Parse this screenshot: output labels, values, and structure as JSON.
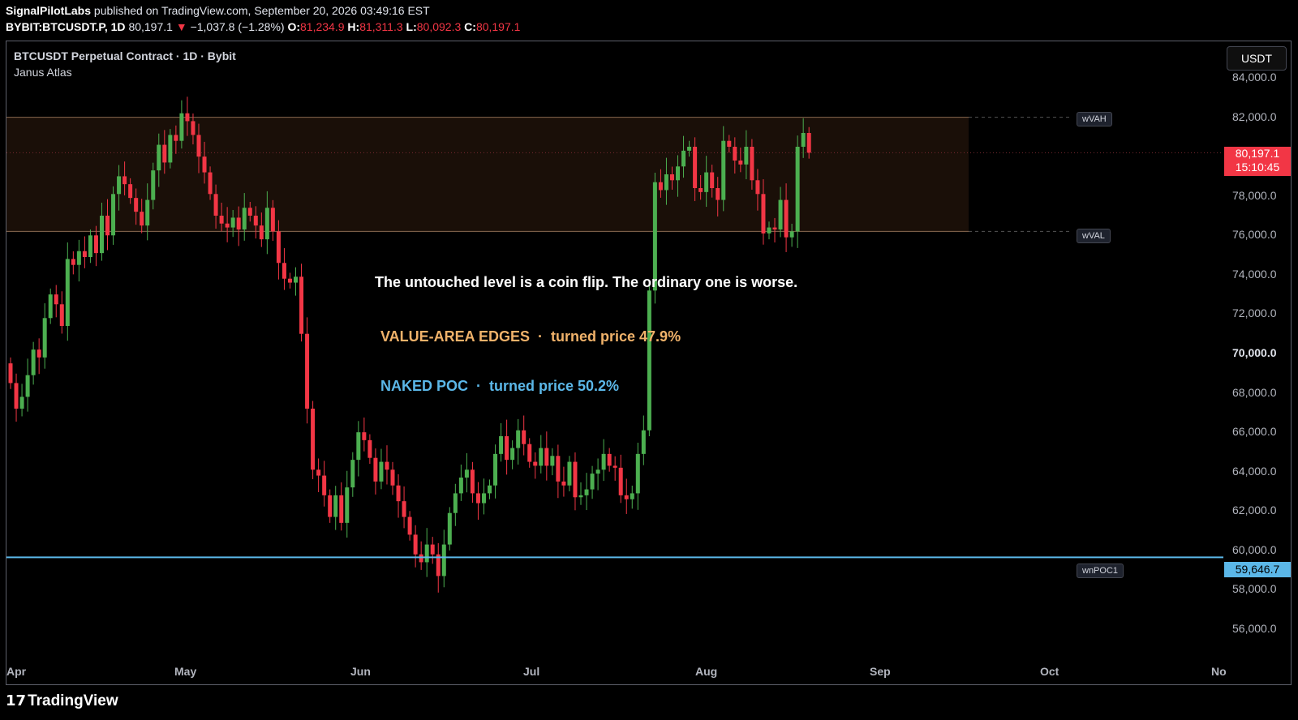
{
  "header": {
    "publisher": "SignalPilotLabs",
    "published_text": "published on TradingView.com, September 20, 2026 03:49:16 EST",
    "symbol": "BYBIT:BTCUSDT.P, 1D",
    "last": "80,197.1",
    "change_arrow": "▼",
    "change": "−1,037.8 (−1.28%)",
    "o_label": "O:",
    "o_value": "81,234.9",
    "h_label": "H:",
    "h_value": "81,311.3",
    "l_label": "L:",
    "l_value": "80,092.3",
    "c_label": "C:",
    "c_value": "80,197.1"
  },
  "chart_title": "BTCUSDT Perpetual Contract · 1D · Bybit",
  "indicator_name": "Janus Atlas",
  "currency_button": "USDT",
  "annotations": {
    "line1": "The untouched level is a coin flip. The ordinary one is worse.",
    "line2": "VALUE-AREA EDGES  ·  turned price 47.9%",
    "line3": "NAKED POC  ·  turned price 50.2%"
  },
  "levels": {
    "wvah_label": "wVAH",
    "wval_label": "wVAL",
    "wnpoc_label": "wnPOC1",
    "price_label": "80,197.1",
    "countdown": "15:10:45",
    "poc_price_label": "59,646.7"
  },
  "y_axis_labels": [
    "84,000.0",
    "82,000.0",
    "80,000.0",
    "78,000.0",
    "76,000.0",
    "74,000.0",
    "72,000.0",
    "70,000.0",
    "68,000.0",
    "66,000.0",
    "64,000.0",
    "62,000.0",
    "60,000.0",
    "58,000.0",
    "56,000.0"
  ],
  "x_axis_labels": [
    "Apr",
    "May",
    "Jun",
    "Jul",
    "Aug",
    "Sep",
    "Oct",
    "No"
  ],
  "logo_text": "TradingView",
  "colors": {
    "up": "#4caf50",
    "down": "#f23645",
    "value_area_fill": "#1a0f08",
    "value_area_line": "#8a6a50",
    "poc_line": "#5bb7e8",
    "annotation_edges": "#f0b26a",
    "annotation_poc": "#5bb7e8"
  },
  "chart_data": {
    "type": "candlestick",
    "title": "BTCUSDT Perpetual Contract · 1D · Bybit",
    "x_start": "2026-04-01",
    "ylim": [
      55000,
      85000
    ],
    "levels": {
      "wVAH": 82000,
      "wVAL": 76200,
      "wnPOC1": 59646.7,
      "last": 80197.1
    },
    "closes": [
      68500,
      67200,
      67800,
      68900,
      70200,
      69800,
      71800,
      73000,
      72500,
      71400,
      74800,
      74500,
      75200,
      74900,
      76000,
      75100,
      77000,
      76000,
      78100,
      79000,
      78600,
      77900,
      77200,
      76500,
      77800,
      79300,
      80600,
      79700,
      81100,
      80800,
      82200,
      81800,
      81100,
      80000,
      79200,
      78100,
      77000,
      76600,
      76400,
      76900,
      76300,
      77400,
      77000,
      76500,
      75800,
      77400,
      76200,
      74600,
      73800,
      73600,
      73900,
      71000,
      67200,
      64100,
      63800,
      62800,
      61700,
      62800,
      61400,
      63200,
      64600,
      66000,
      65600,
      64700,
      63500,
      64500,
      64100,
      63300,
      62500,
      61700,
      60800,
      59800,
      59400,
      60300,
      59800,
      58700,
      60300,
      61900,
      62900,
      63700,
      64100,
      62900,
      62400,
      62900,
      63300,
      64900,
      65800,
      64600,
      65200,
      66100,
      65400,
      64500,
      64300,
      65200,
      64300,
      64800,
      63500,
      63300,
      64500,
      62700,
      62800,
      63100,
      63900,
      64100,
      64900,
      64300,
      64200,
      62800,
      62600,
      62900,
      64900,
      66100,
      73200,
      78700,
      78300,
      79100,
      78800,
      79500,
      80300,
      80500,
      78400,
      78200,
      79200,
      78400,
      77800,
      80800,
      80500,
      79800,
      79600,
      80500,
      78800,
      78100,
      76100,
      76400,
      76300,
      77800,
      75900,
      76200,
      80500,
      81200,
      80197.1
    ]
  }
}
